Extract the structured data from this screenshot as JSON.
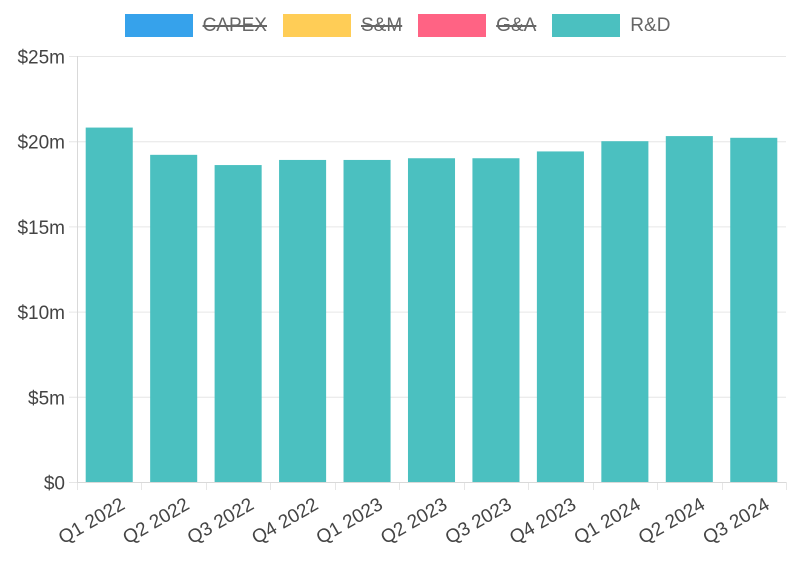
{
  "legend": [
    {
      "label": "CAPEX",
      "color": "#36a2eb",
      "hidden": true
    },
    {
      "label": "S&M",
      "color": "#ffcd56",
      "hidden": true
    },
    {
      "label": "G&A",
      "color": "#ff6384",
      "hidden": true
    },
    {
      "label": "R&D",
      "color": "#4bc0c0",
      "hidden": false
    }
  ],
  "chart_data": {
    "type": "bar",
    "categories": [
      "Q1 2022",
      "Q2 2022",
      "Q3 2022",
      "Q4 2022",
      "Q1 2023",
      "Q2 2023",
      "Q3 2023",
      "Q4 2023",
      "Q1 2024",
      "Q2 2024",
      "Q3 2024"
    ],
    "series": [
      {
        "name": "R&D",
        "color": "#4bc0c0",
        "values": [
          20.8,
          19.2,
          18.6,
          18.9,
          18.9,
          19.0,
          19.0,
          19.4,
          20.0,
          20.3,
          20.2
        ]
      }
    ],
    "hidden_series": [
      "CAPEX",
      "S&M",
      "G&A"
    ],
    "ylim": [
      0,
      25
    ],
    "yticks": [
      0,
      5,
      10,
      15,
      20,
      25
    ],
    "ytick_labels": [
      "$0",
      "$5m",
      "$10m",
      "$15m",
      "$20m",
      "$25m"
    ],
    "grid": true,
    "legend_position": "top"
  }
}
